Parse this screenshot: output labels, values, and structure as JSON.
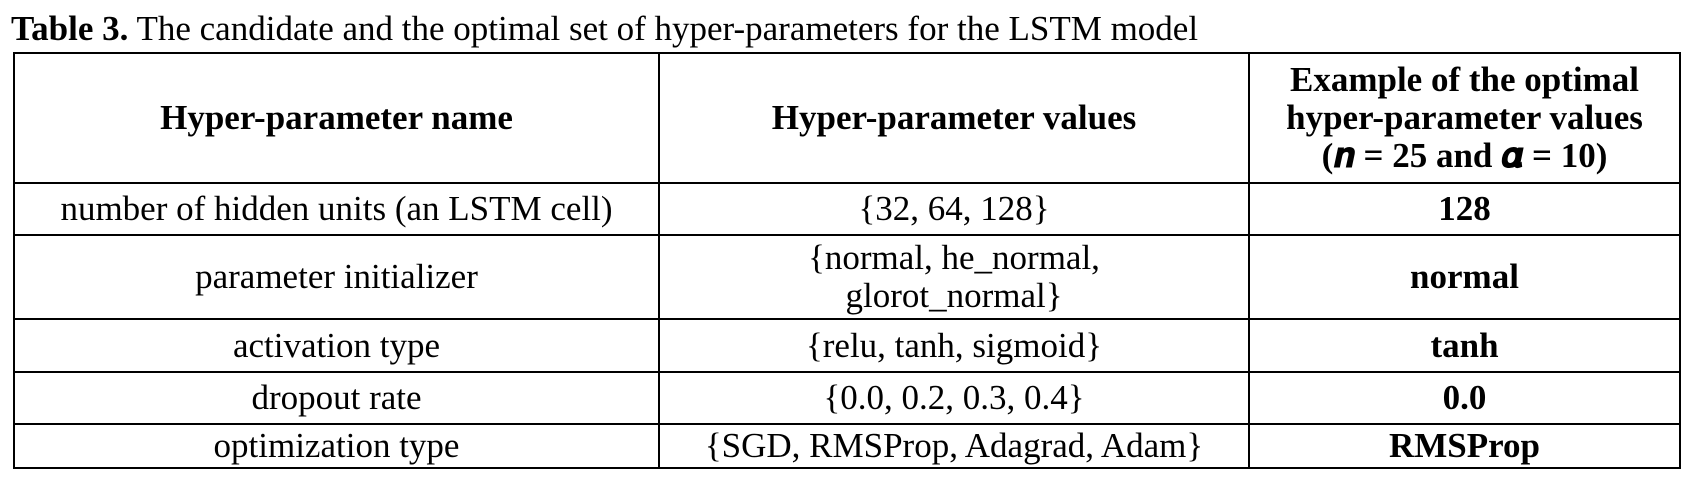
{
  "caption": {
    "label": "Table 3.",
    "text": "The candidate and the optimal set of hyper-parameters for the LSTM model"
  },
  "table": {
    "headers": {
      "name": "Hyper-parameter name",
      "values": "Hyper-parameter values",
      "optimal_line1": "Example of the optimal",
      "optimal_line2": "hyper-parameter values",
      "optimal_line3": "(𝒏 = 25 and 𝜶 = 10)"
    },
    "rows": [
      {
        "name": "number of hidden units (an LSTM cell)",
        "values_line1": "{32, 64, 128}",
        "values_line2": "",
        "optimal": "128"
      },
      {
        "name": "parameter initializer",
        "values_line1": "{normal, he_normal,",
        "values_line2": "glorot_normal}",
        "optimal": "normal"
      },
      {
        "name": "activation type",
        "values_line1": "{relu, tanh, sigmoid}",
        "values_line2": "",
        "optimal": "tanh"
      },
      {
        "name": "dropout rate",
        "values_line1": "{0.0, 0.2, 0.3, 0.4}",
        "values_line2": "",
        "optimal": "0.0"
      },
      {
        "name": "optimization type",
        "values_line1": "{SGD, RMSProp, Adagrad, Adam}",
        "values_line2": "",
        "optimal": "RMSProp"
      }
    ]
  }
}
